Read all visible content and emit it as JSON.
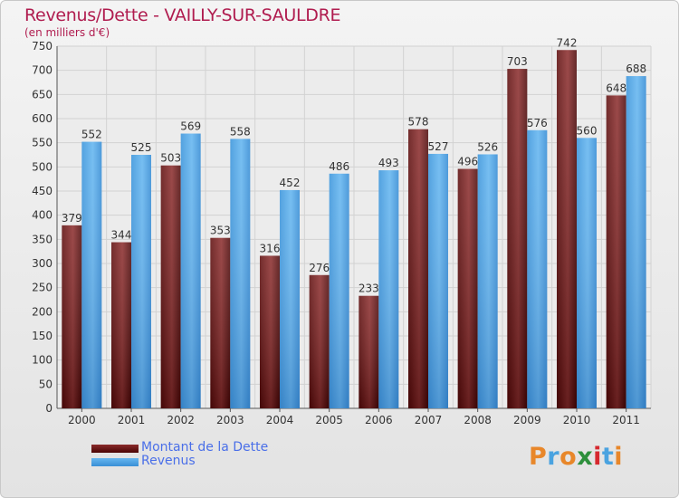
{
  "title": "Revenus/Dette - VAILLY-SUR-SAULDRE",
  "subtitle": "(en milliers d'€)",
  "brand": {
    "text": "Proxiti",
    "letter_colors": [
      "#e8872a",
      "#4aa3e0",
      "#e8872a",
      "#2d8f3c",
      "#d6292f",
      "#4aa3e0",
      "#e8872a"
    ]
  },
  "legend": [
    {
      "label": "Montant de la Dette",
      "color": "#6b0a0a"
    },
    {
      "label": "Revenus",
      "color": "#4aa3e8"
    }
  ],
  "chart_data": {
    "type": "bar",
    "categories": [
      "2000",
      "2001",
      "2002",
      "2003",
      "2004",
      "2005",
      "2006",
      "2007",
      "2008",
      "2009",
      "2010",
      "2011"
    ],
    "series": [
      {
        "name": "Montant de la Dette",
        "color": "#6b0a0a",
        "values": [
          379,
          344,
          503,
          353,
          316,
          276,
          233,
          578,
          496,
          703,
          742,
          648
        ]
      },
      {
        "name": "Revenus",
        "color": "#4aa3e8",
        "values": [
          552,
          525,
          569,
          558,
          452,
          486,
          493,
          527,
          526,
          576,
          560,
          688
        ]
      }
    ],
    "ylim": [
      0,
      750
    ],
    "ytick_step": 50,
    "grid": true,
    "data_labels": true,
    "legend_position": "bottom-left"
  }
}
